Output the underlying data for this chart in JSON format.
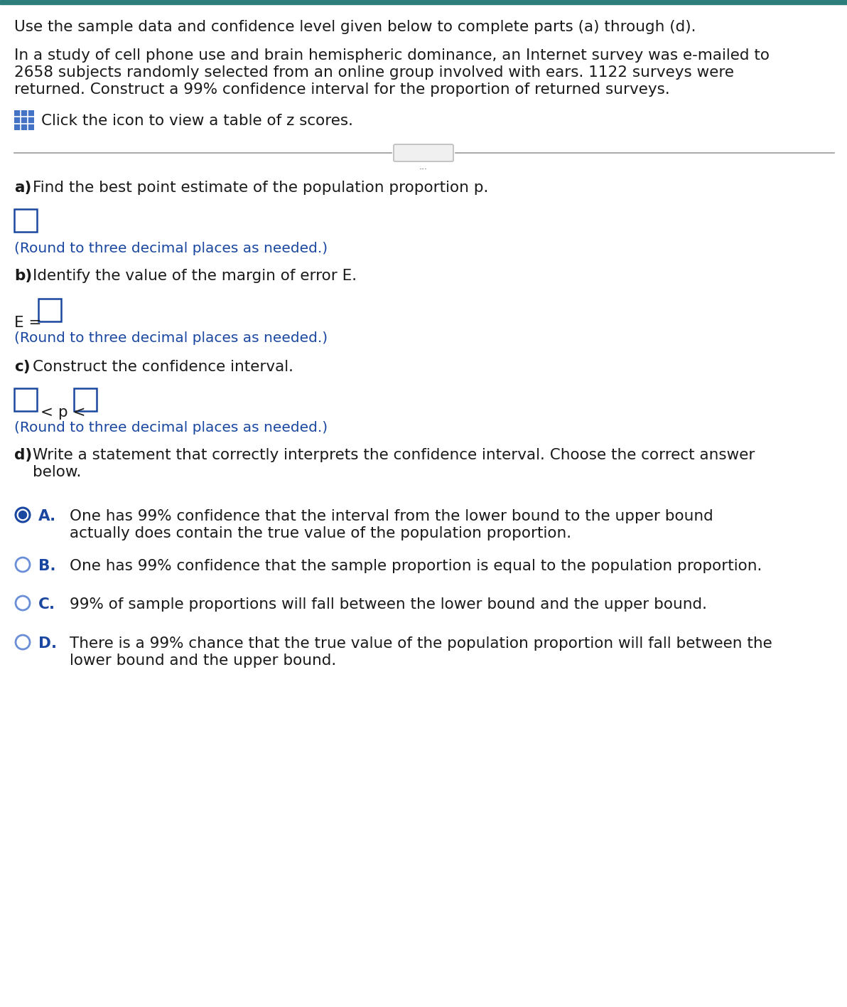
{
  "bg_color": "#ffffff",
  "top_bar_color": "#2d7d7a",
  "intro_text": "Use the sample data and confidence level given below to complete parts (a) through (d).",
  "body_line1": "In a study of cell phone use and brain hemispheric dominance, an Internet survey was e-mailed to",
  "body_line2": "2658 subjects randomly selected from an online group involved with ears. 1122 surveys were",
  "body_line3": "returned. Construct a 99% confidence interval for the proportion of returned surveys.",
  "icon_text": "Click the icon to view a table of z scores.",
  "part_a_bold": "a)",
  "part_a_text": "Find the best point estimate of the population proportion p.",
  "part_a_hint": "(Round to three decimal places as needed.)",
  "part_b_bold": "b)",
  "part_b_text": "Identify the value of the margin of error E.",
  "part_b_eq": "E =",
  "part_b_hint": "(Round to three decimal places as needed.)",
  "part_c_bold": "c)",
  "part_c_text": "Construct the confidence interval.",
  "part_c_hint": "(Round to three decimal places as needed.)",
  "part_d_bold": "d)",
  "part_d_line1": "Write a statement that correctly interprets the confidence interval. Choose the correct answer",
  "part_d_line2": "below.",
  "option_A_label": "A.",
  "option_A_line1": "One has 99% confidence that the interval from the lower bound to the upper bound",
  "option_A_line2": "actually does contain the true value of the population proportion.",
  "option_B_label": "B.",
  "option_B_text": "One has 99% confidence that the sample proportion is equal to the population proportion.",
  "option_C_label": "C.",
  "option_C_text": "99% of sample proportions will fall between the lower bound and the upper bound.",
  "option_D_label": "D.",
  "option_D_line1": "There is a 99% chance that the true value of the population proportion will fall between the",
  "option_D_line2": "lower bound and the upper bound.",
  "blue_color": "#1a47a0",
  "black_color": "#1a1a1a",
  "hint_color": "#1a47a0",
  "radio_selected_fill": "#1a47a0",
  "radio_selected_edge": "#1a47a0",
  "radio_unselected_edge": "#6a8fd8",
  "box_border_color": "#1a47a0",
  "grid_icon_color": "#4472c4",
  "divider_color": "#999999",
  "text_font_size": 15.5,
  "hint_font_size": 14.5,
  "label_font_size": 15.5
}
